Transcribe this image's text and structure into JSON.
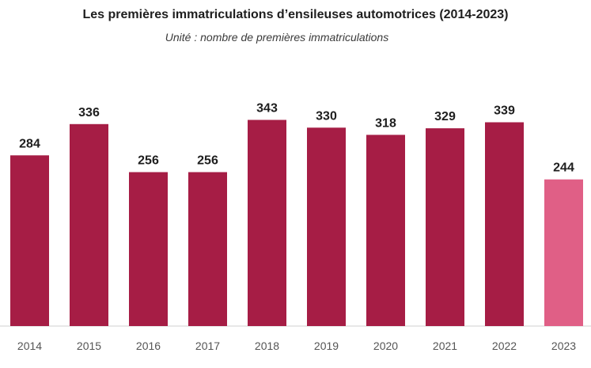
{
  "title": "Les premières immatriculations d’ensileuses automotrices (2014-2023)",
  "subtitle": "Unité : nombre de premières immatriculations",
  "colors": {
    "bar": "#a61d45",
    "highlight": "#e05f86",
    "axis": "#d0d0d0"
  },
  "chart_data": {
    "type": "bar",
    "title": "Les premières immatriculations d’ensileuses automotrices (2014-2023)",
    "subtitle": "Unité : nombre de premières immatriculations",
    "categories": [
      "2014",
      "2015",
      "2016",
      "2017",
      "2018",
      "2019",
      "2020",
      "2021",
      "2022",
      "2023"
    ],
    "values": [
      284,
      336,
      256,
      256,
      343,
      330,
      318,
      329,
      339,
      244
    ],
    "highlighted_category": "2023",
    "xlabel": "",
    "ylabel": "",
    "ylim": [
      0,
      400
    ],
    "grid": false,
    "legend": "none",
    "data_labels": true
  }
}
